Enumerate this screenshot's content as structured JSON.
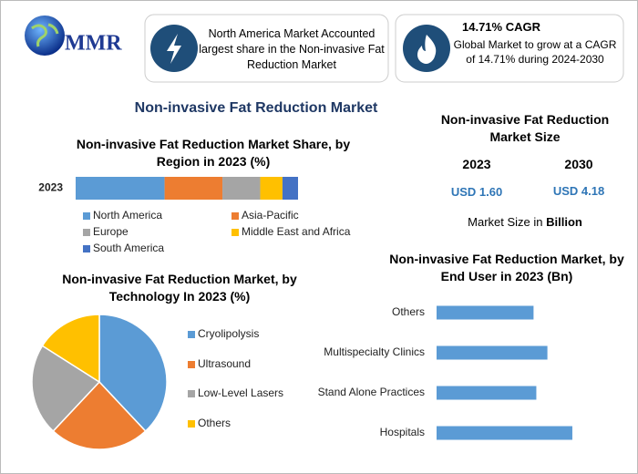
{
  "header": {
    "logo": "MMR",
    "highlight_1": "North America Market Accounted largest share in the Non-invasive Fat Reduction Market",
    "highlight_2_title": "14.71% CAGR",
    "highlight_2_text": "Global Market to grow at a CAGR of 14.71% during 2024-2030"
  },
  "title": "Non-invasive Fat Reduction Market",
  "market_size": {
    "title": "Non-invasive Fat Reduction Market Size",
    "years": [
      "2023",
      "2030"
    ],
    "values": [
      "USD 1.60",
      "USD 4.18"
    ],
    "note": "Market Size in",
    "note_unit": "Billion"
  },
  "chart_data": [
    {
      "type": "bar",
      "orientation": "horizontal",
      "stacked": true,
      "title": "Non-invasive Fat Reduction Market Share, by Region in 2023 (%)",
      "categories": [
        "2023"
      ],
      "xlim": [
        0,
        100
      ],
      "series": [
        {
          "name": "North America",
          "color": "#5b9bd5",
          "values": [
            40
          ]
        },
        {
          "name": "Asia-Pacific",
          "color": "#ed7d31",
          "values": [
            26
          ]
        },
        {
          "name": "Europe",
          "color": "#a5a5a5",
          "values": [
            17
          ]
        },
        {
          "name": "Middle East and Africa",
          "color": "#ffc000",
          "values": [
            10
          ]
        },
        {
          "name": "South America",
          "color": "#4472c4",
          "values": [
            7
          ]
        }
      ]
    },
    {
      "type": "pie",
      "title": "Non-invasive Fat Reduction Market, by Technology In 2023 (%)",
      "categories": [
        "Cryolipolysis",
        "Ultrasound",
        "Low-Level Lasers",
        "Others"
      ],
      "values": [
        38,
        24,
        22,
        16
      ],
      "colors": [
        "#5b9bd5",
        "#ed7d31",
        "#a5a5a5",
        "#ffc000"
      ]
    },
    {
      "type": "bar",
      "orientation": "horizontal",
      "stacked": false,
      "title": "Non-invasive Fat Reduction Market, by End User in 2023 (Bn)",
      "categories": [
        "Others",
        "Multispecialty Clinics",
        "Stand Alone Practices",
        "Hospitals"
      ],
      "values": [
        0.35,
        0.4,
        0.36,
        0.49
      ],
      "xlim": [
        0,
        0.5
      ],
      "color": "#5b9bd5"
    }
  ]
}
